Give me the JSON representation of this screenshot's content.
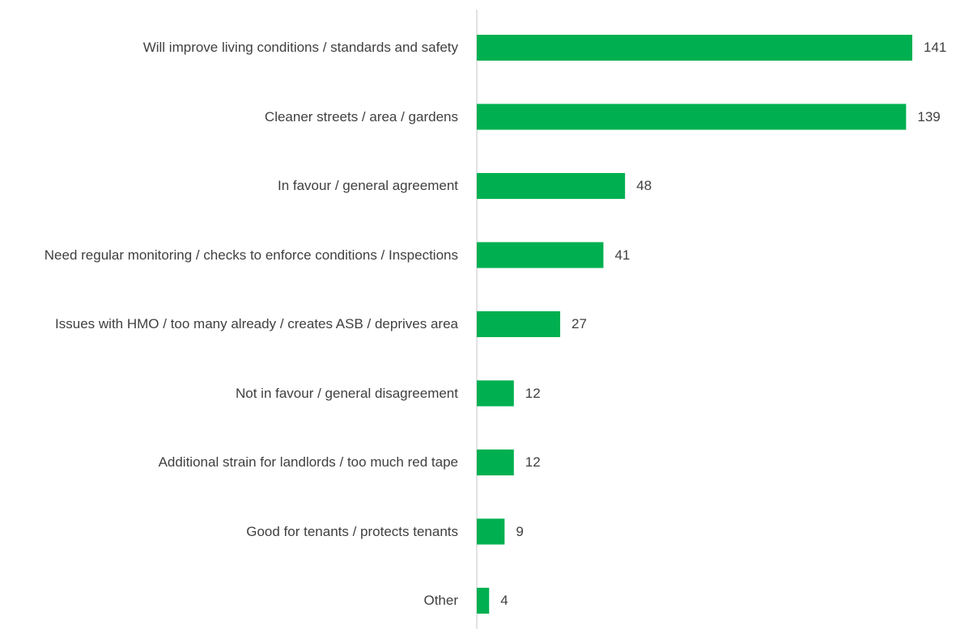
{
  "chart_data": {
    "type": "barh",
    "color": "#00b050",
    "categories": [
      "Will improve living conditions / standards and safety",
      "Cleaner streets / area / gardens",
      "In favour / general agreement",
      "Need regular monitoring / checks to enforce conditions / Inspections",
      "Issues with HMO / too many already / creates ASB / deprives area",
      "Not in favour / general disagreement",
      "Additional strain for landlords / too much red tape",
      "Good for tenants / protects tenants",
      "Other"
    ],
    "values": [
      141,
      139,
      48,
      41,
      27,
      12,
      12,
      9,
      4
    ]
  }
}
